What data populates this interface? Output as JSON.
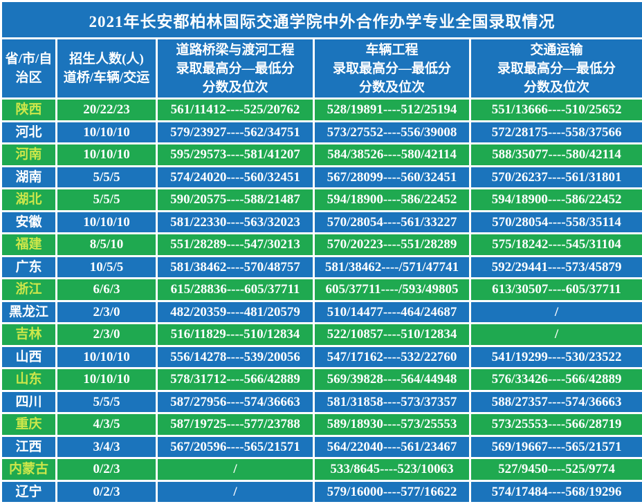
{
  "title": "2021年长安都柏林国际交通学院中外合作办学专业全国录取情况",
  "colors": {
    "header_blue": "#1b74bc",
    "row_blue": "#1b74bc",
    "row_green": "#1fa950",
    "province_yellow": "#cde74a",
    "text_white": "#ffffff",
    "grid_line": "#ffffff"
  },
  "table": {
    "columns": [
      {
        "label_lines": [
          "省/市/自",
          "治区"
        ]
      },
      {
        "label_lines": [
          "招生人数(人)",
          "道桥/车辆/交运"
        ]
      },
      {
        "label_lines": [
          "道路桥梁与渡河工程",
          "录取最高分—最低分",
          "分数及位次"
        ]
      },
      {
        "label_lines": [
          "车辆工程",
          "录取最高分—最低分",
          "分数及位次"
        ]
      },
      {
        "label_lines": [
          "交通运输",
          "录取最高分—最低分",
          "分数及位次"
        ]
      }
    ],
    "rows": [
      {
        "province": "陕西",
        "enrollment": "20/22/23",
        "road_bridge": "561/11412----525/20762",
        "vehicle": "528/19891----512/25194",
        "transport": "551/13666----510/25652"
      },
      {
        "province": "河北",
        "enrollment": "10/10/10",
        "road_bridge": "579/23927----562/34751",
        "vehicle": "573/27552----556/39008",
        "transport": "572/28175----558/37566"
      },
      {
        "province": "河南",
        "enrollment": "10/10/10",
        "road_bridge": "595/29573----581/41207",
        "vehicle": "584/38526----580/42114",
        "transport": "588/35077----580/42114"
      },
      {
        "province": "湖南",
        "enrollment": "5/5/5",
        "road_bridge": "574/24020----560/32451",
        "vehicle": "567/28099----560/32451",
        "transport": "570/26237----561/31801"
      },
      {
        "province": "湖北",
        "enrollment": "5/5/5",
        "road_bridge": "590/20575----588/21487",
        "vehicle": "594/18900----586/22452",
        "transport": "594/18900----586/22452"
      },
      {
        "province": "安徽",
        "enrollment": "10/10/10",
        "road_bridge": "581/22330----563/32023",
        "vehicle": "570/28054----561/33227",
        "transport": "570/28054----558/35114"
      },
      {
        "province": "福建",
        "enrollment": "8/5/10",
        "road_bridge": "551/28289----547/30213",
        "vehicle": "570/20223----551/28289",
        "transport": "575/18242----545/31104"
      },
      {
        "province": "广东",
        "enrollment": "10/5/5",
        "road_bridge": "581/38462----570/48757",
        "vehicle": "581/38462----/571/47741",
        "transport": "592/29441----573/45879"
      },
      {
        "province": "浙江",
        "enrollment": "6/6/3",
        "road_bridge": "615/28836----605/37711",
        "vehicle": "605/37711----/593/49805",
        "transport": "613/30507----605/37711"
      },
      {
        "province": "黑龙江",
        "enrollment": "2/3/0",
        "road_bridge": "482/20359----481/20579",
        "vehicle": "510/14477----464/24687",
        "transport": "/"
      },
      {
        "province": "吉林",
        "enrollment": "2/3/0",
        "road_bridge": "516/11829----510/12834",
        "vehicle": "522/10857----510/12834",
        "transport": "/"
      },
      {
        "province": "山西",
        "enrollment": "10/10/10",
        "road_bridge": "556/14278----539/20056",
        "vehicle": "547/17162----532/22760",
        "transport": "541/19299----530/23522"
      },
      {
        "province": "山东",
        "enrollment": "10/10/10",
        "road_bridge": "578/31712----566/42889",
        "vehicle": "569/39828----564/44948",
        "transport": "576/33426----566/42889"
      },
      {
        "province": "四川",
        "enrollment": "5/5/5",
        "road_bridge": "587/27956----574/36663",
        "vehicle": "581/31858----573/37357",
        "transport": "588/27357----574/36663"
      },
      {
        "province": "重庆",
        "enrollment": "4/3/5",
        "road_bridge": "587/19725----577/23788",
        "vehicle": "589/18930----573/25553",
        "transport": "573/25553----566/28719"
      },
      {
        "province": "江西",
        "enrollment": "3/4/3",
        "road_bridge": "567/20596----565/21571",
        "vehicle": "564/22040----561/23467",
        "transport": "569/19667----565/21571"
      },
      {
        "province": "内蒙古",
        "enrollment": "0/2/3",
        "road_bridge": "/",
        "vehicle": "533/8645----523/10063",
        "transport": "527/9450----525/9774"
      },
      {
        "province": "辽宁",
        "enrollment": "0/2/3",
        "road_bridge": "/",
        "vehicle": "579/16000----577/16622",
        "transport": "574/17484----568/19296"
      }
    ]
  }
}
